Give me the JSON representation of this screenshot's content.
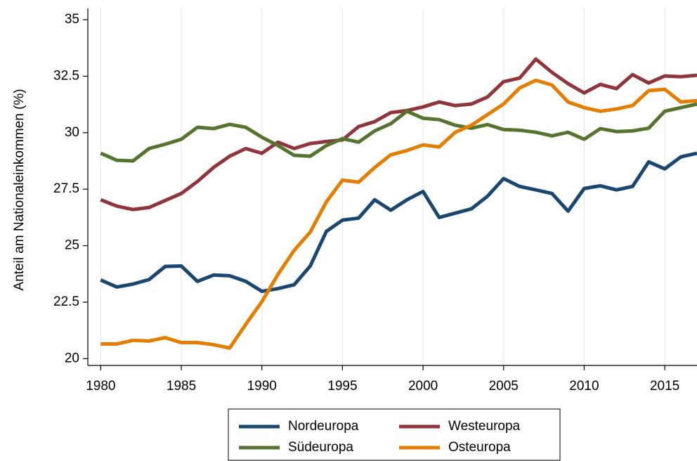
{
  "chart_data": {
    "type": "line",
    "y_label": "Anteil am Nationaleinkommen (%)",
    "x": [
      1980,
      1981,
      1982,
      1983,
      1984,
      1985,
      1986,
      1987,
      1988,
      1989,
      1990,
      1991,
      1992,
      1993,
      1994,
      1995,
      1996,
      1997,
      1998,
      1999,
      2000,
      2001,
      2002,
      2003,
      2004,
      2005,
      2006,
      2007,
      2008,
      2009,
      2010,
      2011,
      2012,
      2013,
      2014,
      2015,
      2016,
      2017
    ],
    "series": [
      {
        "name": "Nordeuropa",
        "color": "#1a476f",
        "values": [
          23.48,
          23.17,
          23.3,
          23.5,
          24.08,
          24.1,
          23.42,
          23.7,
          23.67,
          23.42,
          22.98,
          23.1,
          23.27,
          24.1,
          25.63,
          26.13,
          26.22,
          27.03,
          26.57,
          27.03,
          27.4,
          26.25,
          26.44,
          26.63,
          27.19,
          27.97,
          27.62,
          27.47,
          27.31,
          26.53,
          27.53,
          27.65,
          27.47,
          27.62,
          28.71,
          28.4,
          28.93,
          29.09
        ]
      },
      {
        "name": "Westeuropa",
        "color": "#90353b",
        "values": [
          27.03,
          26.75,
          26.6,
          26.69,
          27.0,
          27.31,
          27.84,
          28.46,
          28.96,
          29.3,
          29.09,
          29.58,
          29.3,
          29.52,
          29.61,
          29.68,
          30.27,
          30.49,
          30.89,
          30.98,
          31.14,
          31.36,
          31.2,
          31.27,
          31.58,
          32.26,
          32.42,
          33.26,
          32.67,
          32.17,
          31.76,
          32.14,
          31.95,
          32.57,
          32.2,
          32.51,
          32.48,
          32.54
        ]
      },
      {
        "name": "Südeuropa",
        "color": "#55752f",
        "values": [
          29.09,
          28.78,
          28.75,
          29.3,
          29.49,
          29.71,
          30.24,
          30.18,
          30.37,
          30.24,
          29.8,
          29.43,
          29.0,
          28.96,
          29.43,
          29.74,
          29.58,
          30.08,
          30.4,
          30.95,
          30.64,
          30.58,
          30.33,
          30.2,
          30.36,
          30.14,
          30.11,
          30.02,
          29.86,
          30.02,
          29.71,
          30.18,
          30.05,
          30.08,
          30.2,
          30.95,
          31.11,
          31.27
        ]
      },
      {
        "name": "Osteuropa",
        "color": "#e37e00",
        "values": [
          20.65,
          20.65,
          20.81,
          20.78,
          20.93,
          20.71,
          20.71,
          20.62,
          20.47,
          21.52,
          22.52,
          23.73,
          24.79,
          25.6,
          26.94,
          27.9,
          27.81,
          28.46,
          29.02,
          29.21,
          29.46,
          29.37,
          30.02,
          30.33,
          30.8,
          31.27,
          31.98,
          32.32,
          32.11,
          31.36,
          31.11,
          30.95,
          31.05,
          31.2,
          31.86,
          31.92,
          31.36,
          31.42
        ]
      }
    ],
    "xlim": [
      1979.2,
      2017
    ],
    "xticks": [
      1980,
      1985,
      1990,
      1995,
      2000,
      2005,
      2010,
      2015
    ],
    "ylim": [
      19.7,
      35.5
    ],
    "yticks": [
      20,
      22.5,
      25,
      27.5,
      30,
      32.5,
      35
    ],
    "grid": true
  }
}
